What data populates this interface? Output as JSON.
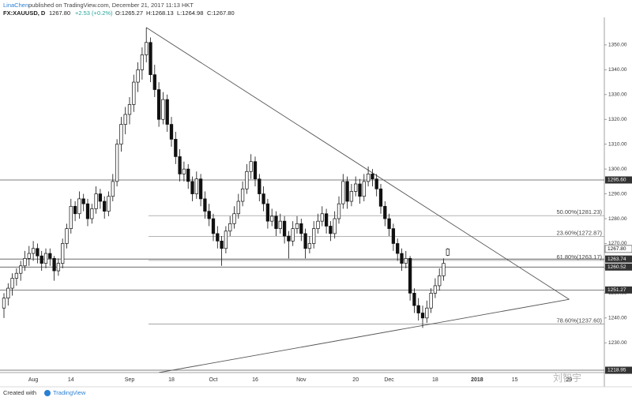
{
  "header": {
    "author": "LinaChen",
    "published": "published on TradingView.com, December 21, 2017 11:13 HKT",
    "symbol": "FX:XAUUSD, D",
    "last": "1267.80",
    "change": "+2.53 (+0.2%)",
    "ohlc_labels": [
      "O:1265.27",
      "H:1268.13",
      "L:1264.98",
      "C:1267.80"
    ]
  },
  "footer": {
    "created": "Created with",
    "brand": "TradingView",
    "watermark": "刘智宇"
  },
  "chart_data": {
    "type": "candlestick",
    "categories": [
      null,
      null,
      null,
      null,
      null,
      null,
      null,
      "Aug",
      null,
      null,
      null,
      null,
      null,
      null,
      null,
      null,
      "14",
      null,
      null,
      null,
      null,
      null,
      null,
      null,
      null,
      null,
      null,
      null,
      null,
      null,
      "Sep",
      null,
      null,
      null,
      null,
      null,
      null,
      null,
      null,
      null,
      "18",
      null,
      null,
      null,
      null,
      null,
      null,
      null,
      null,
      null,
      "Oct",
      null,
      null,
      null,
      null,
      null,
      null,
      null,
      null,
      null,
      "16",
      null,
      null,
      null,
      null,
      null,
      null,
      null,
      null,
      null,
      null,
      "Nov",
      null,
      null,
      null,
      null,
      null,
      null,
      null,
      null,
      null,
      null,
      null,
      null,
      "20",
      null,
      null,
      null,
      null,
      null,
      null,
      null,
      "Dec",
      null,
      null,
      null,
      null,
      null,
      null,
      null,
      null,
      null,
      null,
      "18",
      null,
      null,
      null,
      null,
      null,
      null,
      null,
      null,
      null,
      "2018",
      null,
      null,
      null,
      null,
      null,
      null,
      null,
      null,
      "15",
      null,
      null,
      null,
      null,
      null,
      null,
      null,
      null,
      null,
      null,
      null,
      null,
      "29"
    ],
    "ohlc": [
      [
        1244,
        1250,
        1240,
        1248
      ],
      [
        1248,
        1254,
        1245,
        1252
      ],
      [
        1252,
        1258,
        1249,
        1256
      ],
      [
        1256,
        1260,
        1253,
        1258
      ],
      [
        1258,
        1263,
        1255,
        1261
      ],
      [
        1261,
        1267,
        1259,
        1264
      ],
      [
        1264,
        1269,
        1261,
        1266
      ],
      [
        1266,
        1271,
        1263,
        1268
      ],
      [
        1268,
        1270,
        1262,
        1265
      ],
      [
        1265,
        1267,
        1259,
        1262
      ],
      [
        1262,
        1268,
        1260,
        1266
      ],
      [
        1266,
        1268,
        1261,
        1264
      ],
      [
        1264,
        1265,
        1255,
        1259
      ],
      [
        1259,
        1264,
        1257,
        1262
      ],
      [
        1262,
        1272,
        1260,
        1270
      ],
      [
        1270,
        1278,
        1268,
        1276
      ],
      [
        1276,
        1288,
        1274,
        1285
      ],
      [
        1285,
        1287,
        1279,
        1282
      ],
      [
        1282,
        1291,
        1280,
        1288
      ],
      [
        1288,
        1290,
        1283,
        1286
      ],
      [
        1286,
        1288,
        1277,
        1280
      ],
      [
        1280,
        1286,
        1278,
        1284
      ],
      [
        1284,
        1293,
        1282,
        1290
      ],
      [
        1290,
        1292,
        1284,
        1287
      ],
      [
        1287,
        1289,
        1280,
        1283
      ],
      [
        1283,
        1291,
        1281,
        1289
      ],
      [
        1289,
        1298,
        1287,
        1295
      ],
      [
        1295,
        1312,
        1293,
        1310
      ],
      [
        1310,
        1321,
        1307,
        1318
      ],
      [
        1318,
        1325,
        1314,
        1322
      ],
      [
        1322,
        1329,
        1318,
        1326
      ],
      [
        1326,
        1338,
        1323,
        1335
      ],
      [
        1335,
        1343,
        1331,
        1340
      ],
      [
        1340,
        1349,
        1336,
        1346
      ],
      [
        1346,
        1357,
        1343,
        1351
      ],
      [
        1351,
        1353,
        1335,
        1338
      ],
      [
        1338,
        1342,
        1329,
        1332
      ],
      [
        1332,
        1335,
        1317,
        1320
      ],
      [
        1320,
        1331,
        1318,
        1328
      ],
      [
        1328,
        1330,
        1315,
        1318
      ],
      [
        1318,
        1321,
        1309,
        1312
      ],
      [
        1312,
        1315,
        1302,
        1305
      ],
      [
        1305,
        1308,
        1295,
        1298
      ],
      [
        1298,
        1303,
        1295,
        1300
      ],
      [
        1300,
        1302,
        1292,
        1295
      ],
      [
        1295,
        1297,
        1287,
        1290
      ],
      [
        1290,
        1299,
        1288,
        1296
      ],
      [
        1296,
        1298,
        1285,
        1288
      ],
      [
        1288,
        1291,
        1280,
        1283
      ],
      [
        1283,
        1286,
        1277,
        1280
      ],
      [
        1280,
        1282,
        1271,
        1274
      ],
      [
        1274,
        1277,
        1268,
        1271
      ],
      [
        1271,
        1273,
        1261,
        1268
      ],
      [
        1268,
        1277,
        1266,
        1275
      ],
      [
        1275,
        1281,
        1273,
        1278
      ],
      [
        1278,
        1285,
        1276,
        1282
      ],
      [
        1282,
        1290,
        1280,
        1287
      ],
      [
        1287,
        1295,
        1285,
        1292
      ],
      [
        1292,
        1302,
        1290,
        1299
      ],
      [
        1299,
        1306,
        1296,
        1303
      ],
      [
        1303,
        1305,
        1293,
        1296
      ],
      [
        1296,
        1298,
        1287,
        1290
      ],
      [
        1290,
        1293,
        1283,
        1286
      ],
      [
        1286,
        1288,
        1276,
        1279
      ],
      [
        1279,
        1284,
        1277,
        1281
      ],
      [
        1281,
        1283,
        1273,
        1276
      ],
      [
        1276,
        1282,
        1274,
        1279
      ],
      [
        1279,
        1281,
        1270,
        1273
      ],
      [
        1273,
        1275,
        1264,
        1271
      ],
      [
        1271,
        1279,
        1269,
        1276
      ],
      [
        1276,
        1281,
        1274,
        1278
      ],
      [
        1278,
        1280,
        1271,
        1274
      ],
      [
        1274,
        1276,
        1264,
        1268
      ],
      [
        1268,
        1273,
        1266,
        1270
      ],
      [
        1270,
        1279,
        1268,
        1276
      ],
      [
        1276,
        1282,
        1274,
        1279
      ],
      [
        1279,
        1285,
        1277,
        1282
      ],
      [
        1282,
        1284,
        1274,
        1277
      ],
      [
        1277,
        1279,
        1271,
        1274
      ],
      [
        1274,
        1283,
        1272,
        1280
      ],
      [
        1280,
        1289,
        1278,
        1286
      ],
      [
        1286,
        1298,
        1284,
        1295
      ],
      [
        1295,
        1297,
        1284,
        1287
      ],
      [
        1287,
        1294,
        1285,
        1291
      ],
      [
        1291,
        1297,
        1289,
        1294
      ],
      [
        1294,
        1296,
        1286,
        1289
      ],
      [
        1289,
        1298,
        1287,
        1295
      ],
      [
        1295,
        1301,
        1293,
        1298
      ],
      [
        1298,
        1300,
        1293,
        1296
      ],
      [
        1296,
        1298,
        1289,
        1292
      ],
      [
        1292,
        1294,
        1282,
        1285
      ],
      [
        1285,
        1287,
        1277,
        1280
      ],
      [
        1280,
        1282,
        1273,
        1276
      ],
      [
        1276,
        1278,
        1267,
        1270
      ],
      [
        1270,
        1272,
        1263,
        1266
      ],
      [
        1266,
        1268,
        1259,
        1262
      ],
      [
        1262,
        1267,
        1260,
        1264
      ],
      [
        1264,
        1265,
        1247,
        1250
      ],
      [
        1250,
        1252,
        1242,
        1245
      ],
      [
        1245,
        1248,
        1239,
        1242
      ],
      [
        1242,
        1245,
        1236,
        1240
      ],
      [
        1240,
        1247,
        1238,
        1244
      ],
      [
        1244,
        1252,
        1242,
        1250
      ],
      [
        1250,
        1256,
        1248,
        1253
      ],
      [
        1253,
        1260,
        1251,
        1257
      ],
      [
        1257,
        1264,
        1255,
        1262
      ],
      [
        1265.27,
        1268.13,
        1264.98,
        1267.8
      ],
      null,
      null,
      null,
      null,
      null,
      null,
      null,
      null,
      null,
      null,
      null,
      null,
      null,
      null,
      null,
      null,
      null,
      null,
      null,
      null,
      null,
      null,
      null,
      null,
      null,
      null,
      null,
      null,
      null
    ],
    "up_color": "#ffffff",
    "down_color": "#111111",
    "ylim": [
      1218,
      1361.1
    ],
    "yticks": [
      {
        "value": 1230,
        "label": "1230.00"
      },
      {
        "value": 1240,
        "label": "1240.00"
      },
      {
        "value": 1250,
        "label": "1250.00"
      },
      {
        "value": 1260,
        "label": "1260.00"
      },
      {
        "value": 1270,
        "label": "1270.00"
      },
      {
        "value": 1280,
        "label": "1280.00"
      },
      {
        "value": 1290,
        "label": "1290.00"
      },
      {
        "value": 1300,
        "label": "1300.00"
      },
      {
        "value": 1310,
        "label": "1310.00"
      },
      {
        "value": 1320,
        "label": "1320.00"
      },
      {
        "value": 1330,
        "label": "1330.00"
      },
      {
        "value": 1340,
        "label": "1340.00"
      },
      {
        "value": 1350,
        "label": "1350.00"
      }
    ],
    "levels": [
      {
        "value": 1295.6,
        "label": "1295.60"
      },
      {
        "value": 1263.74,
        "label": "1263.74"
      },
      {
        "value": 1260.52,
        "label": "1260.52"
      },
      {
        "value": 1251.27,
        "label": "1251.27"
      },
      {
        "value": 1218.95,
        "label": "1218.95"
      }
    ],
    "fibs": [
      {
        "value": 1281.23,
        "label": "50.00%(1281.23)"
      },
      {
        "value": 1272.87,
        "label": "23.60%(1272.87)"
      },
      {
        "value": 1263.17,
        "label": "61.80%(1263.17)"
      },
      {
        "value": 1237.6,
        "label": "78.60%(1237.60)"
      }
    ],
    "last_price": {
      "value": 1267.8,
      "label": "1267.80"
    },
    "trendlines": [
      {
        "from": [
          34,
          1357
        ],
        "to": [
          135,
          1247.5
        ]
      },
      {
        "from": [
          37,
          1218
        ],
        "to": [
          135,
          1247.5
        ]
      }
    ]
  }
}
